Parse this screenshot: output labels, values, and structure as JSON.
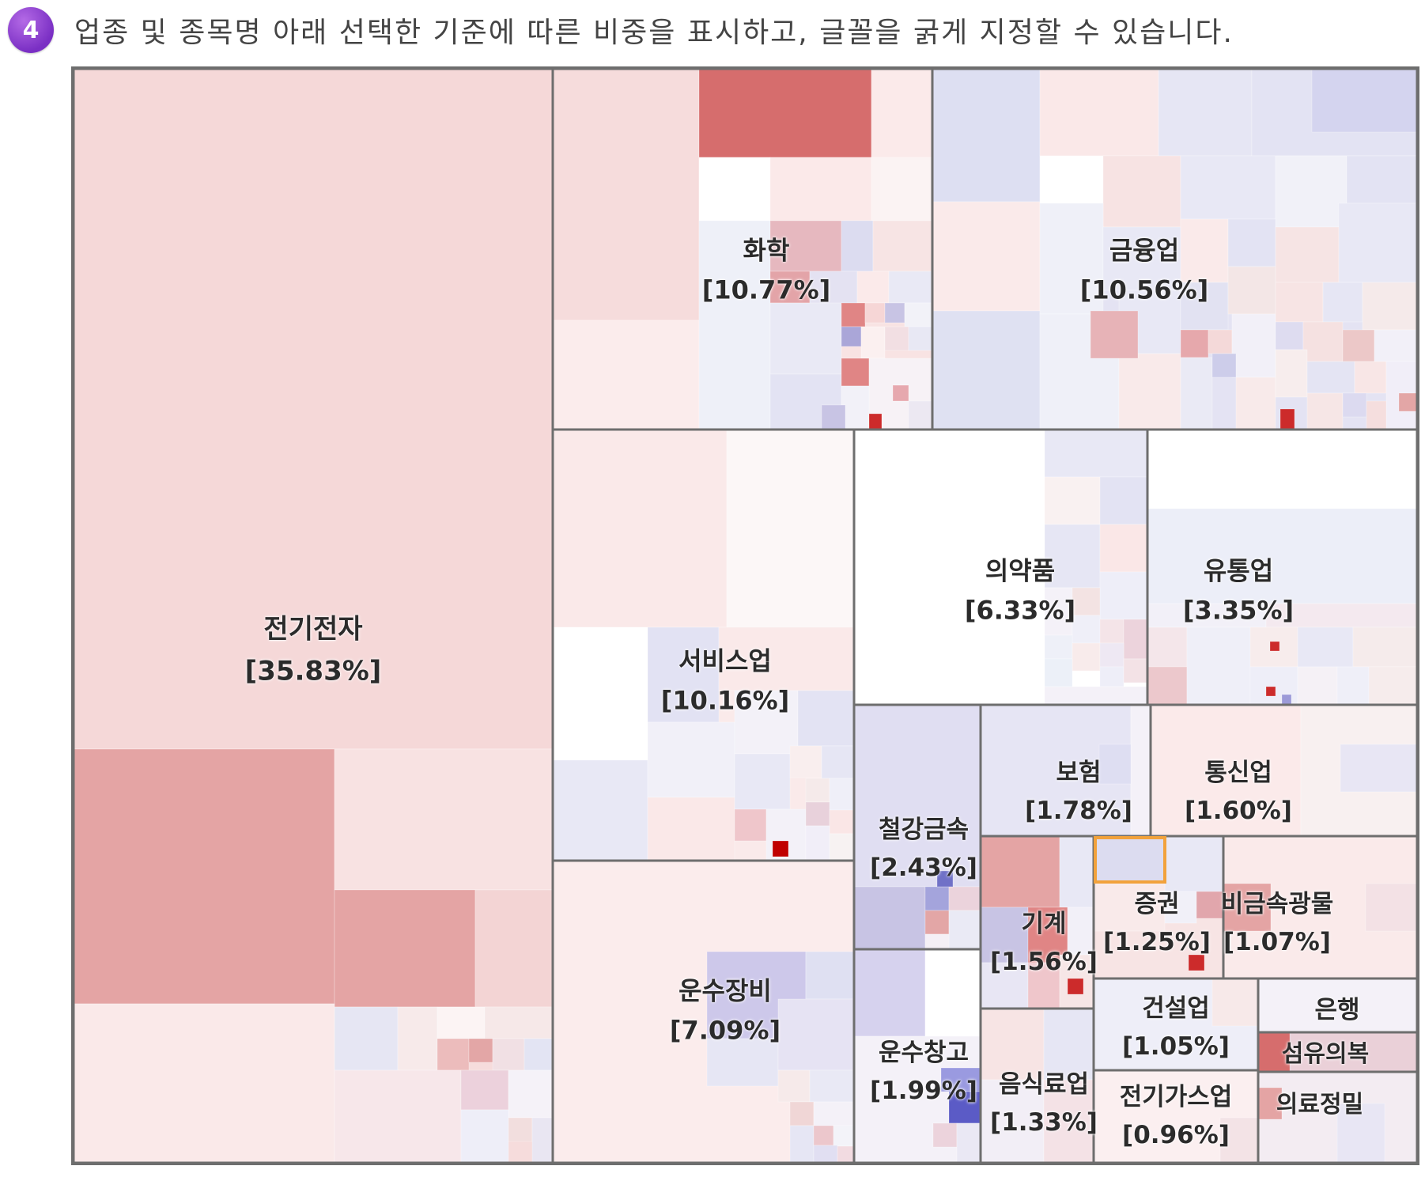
{
  "caption": {
    "step_number": "4",
    "text": "업종 및 종목명 아래 선택한 기준에 따른 비중을 표시하고, 글꼴을 굵게 지정할 수 있습니다."
  },
  "colors": {
    "border": "#6e6e6e",
    "highlight": "#f2a23c",
    "badge": "#8a3ad6",
    "positive_light": "#f6dcdc",
    "positive_mid": "#e4a4a4",
    "positive_strong": "#d66d6d",
    "negative_light": "#dadcf0",
    "negative_mid": "#b9b3e0"
  },
  "chart_data": {
    "type": "treemap",
    "title": "",
    "unit": "%",
    "selected_item": "증권",
    "sectors": [
      {
        "name": "전기전자",
        "weight_label": "[35.83%]",
        "value": 35.83
      },
      {
        "name": "화학",
        "weight_label": "[10.77%]",
        "value": 10.77
      },
      {
        "name": "금융업",
        "weight_label": "[10.56%]",
        "value": 10.56
      },
      {
        "name": "서비스업",
        "weight_label": "[10.16%]",
        "value": 10.16
      },
      {
        "name": "운수장비",
        "weight_label": "[7.09%]",
        "value": 7.09
      },
      {
        "name": "의약품",
        "weight_label": "[6.33%]",
        "value": 6.33
      },
      {
        "name": "유통업",
        "weight_label": "[3.35%]",
        "value": 3.35
      },
      {
        "name": "철강금속",
        "weight_label": "[2.43%]",
        "value": 2.43
      },
      {
        "name": "운수창고",
        "weight_label": "[1.99%]",
        "value": 1.99
      },
      {
        "name": "보험",
        "weight_label": "[1.78%]",
        "value": 1.78
      },
      {
        "name": "통신업",
        "weight_label": "[1.60%]",
        "value": 1.6
      },
      {
        "name": "기계",
        "weight_label": "[1.56%]",
        "value": 1.56
      },
      {
        "name": "음식료업",
        "weight_label": "[1.33%]",
        "value": 1.33
      },
      {
        "name": "증권",
        "weight_label": "[1.25%]",
        "value": 1.25
      },
      {
        "name": "비금속광물",
        "weight_label": "[1.07%]",
        "value": 1.07
      },
      {
        "name": "건설업",
        "weight_label": "[1.05%]",
        "value": 1.05
      },
      {
        "name": "전기가스업",
        "weight_label": "[0.96%]",
        "value": 0.96
      },
      {
        "name": "은행",
        "weight_label": "",
        "value": null
      },
      {
        "name": "섬유의복",
        "weight_label": "",
        "value": null
      },
      {
        "name": "의료정밀",
        "weight_label": "",
        "value": null
      }
    ]
  }
}
